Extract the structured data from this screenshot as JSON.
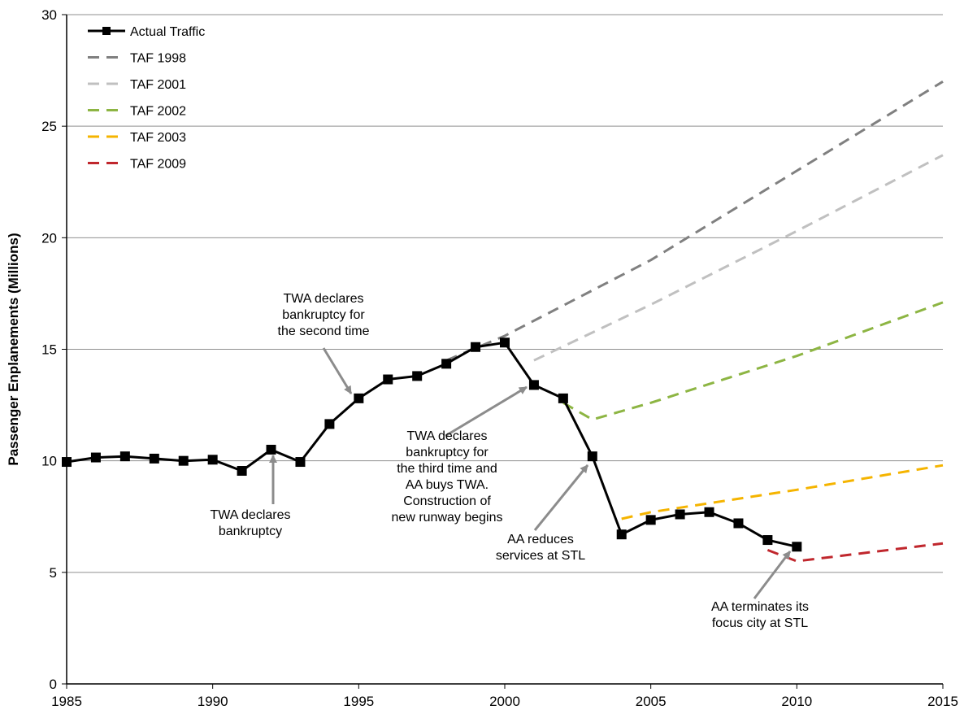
{
  "chart_data": {
    "type": "line",
    "title": "",
    "xlabel": "",
    "ylabel": "Passenger Enplanements (Millions)",
    "xlim": [
      1985,
      2015
    ],
    "ylim": [
      0,
      30
    ],
    "x_ticks": [
      1985,
      1990,
      1995,
      2000,
      2005,
      2010,
      2015
    ],
    "y_ticks": [
      0,
      5,
      10,
      15,
      20,
      25,
      30
    ],
    "grid": "horizontal",
    "legend_position": "top-left",
    "series": [
      {
        "name": "Actual Traffic",
        "color": "#000000",
        "style": "solid-markers",
        "x": [
          1985,
          1986,
          1987,
          1988,
          1989,
          1990,
          1991,
          1992,
          1993,
          1994,
          1995,
          1996,
          1997,
          1998,
          1999,
          2000,
          2001,
          2002,
          2003,
          2004,
          2005,
          2006,
          2007,
          2008,
          2009,
          2010
        ],
        "y": [
          9.95,
          10.15,
          10.2,
          10.1,
          10.0,
          10.05,
          9.55,
          10.5,
          9.95,
          11.65,
          12.8,
          13.65,
          13.8,
          14.35,
          15.1,
          15.3,
          13.4,
          12.8,
          10.2,
          6.7,
          7.35,
          7.6,
          7.7,
          7.2,
          6.45,
          6.15
        ]
      },
      {
        "name": "TAF 1998",
        "color": "#808080",
        "style": "dashed",
        "x": [
          1998,
          2000,
          2005,
          2010,
          2015
        ],
        "y": [
          14.5,
          15.6,
          19.0,
          23.0,
          27.0
        ]
      },
      {
        "name": "TAF 2001",
        "color": "#c0c0c0",
        "style": "dashed",
        "x": [
          2001,
          2005,
          2010,
          2015
        ],
        "y": [
          14.5,
          17.0,
          20.3,
          23.7
        ]
      },
      {
        "name": "TAF 2002",
        "color": "#8db543",
        "style": "dashed",
        "x": [
          2002,
          2003,
          2005,
          2010,
          2015
        ],
        "y": [
          12.6,
          11.85,
          12.6,
          14.7,
          17.1
        ]
      },
      {
        "name": "TAF 2003",
        "color": "#f5b400",
        "style": "dashed",
        "x": [
          2004,
          2005,
          2010,
          2015
        ],
        "y": [
          7.4,
          7.7,
          8.7,
          9.8
        ]
      },
      {
        "name": "TAF 2009",
        "color": "#c0272d",
        "style": "dashed",
        "x": [
          2009,
          2010,
          2015
        ],
        "y": [
          6.0,
          5.5,
          6.3
        ]
      }
    ],
    "annotations": [
      {
        "lines": [
          "TWA declares",
          "bankruptcy"
        ],
        "point": [
          1992,
          10.5
        ]
      },
      {
        "lines": [
          "TWA declares",
          "bankruptcy for",
          "the second time"
        ],
        "point": [
          1995,
          12.8
        ]
      },
      {
        "lines": [
          "TWA declares",
          "bankruptcy for",
          "the third time and",
          "AA buys TWA.",
          "Construction of",
          "new runway begins"
        ],
        "point": [
          2001,
          13.4
        ]
      },
      {
        "lines": [
          "AA reduces",
          "services at STL"
        ],
        "point": [
          2003,
          10.2
        ]
      },
      {
        "lines": [
          "AA terminates its",
          "focus city at STL"
        ],
        "point": [
          2010,
          6.15
        ]
      }
    ]
  }
}
